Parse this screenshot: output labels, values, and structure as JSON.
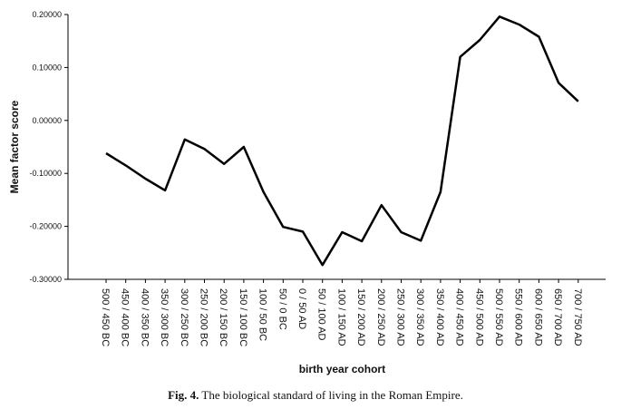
{
  "chart_data": {
    "type": "line",
    "ylabel": "Mean factor score",
    "xlabel": "birth year cohort",
    "ylim": [
      -0.3,
      0.2
    ],
    "yticks": [
      "-0.30000",
      "-0.20000",
      "-0.10000",
      "0.00000",
      "0.10000",
      "0.20000"
    ],
    "ytick_values": [
      -0.3,
      -0.2,
      -0.1,
      0.0,
      0.1,
      0.2
    ],
    "grid": false,
    "categories": [
      "500 / 450 BC",
      "450 / 400 BC",
      "400 / 350 BC",
      "350 / 300 BC",
      "300 / 250 BC",
      "250 / 200 BC",
      "200 / 150 BC",
      "150 / 100 BC",
      "100 / 50 BC",
      "50 / 0 BC",
      "0 / 50 AD",
      "50 / 100 AD",
      "100 / 150 AD",
      "150 / 200 AD",
      "200 / 250 AD",
      "250 / 300 AD",
      "300 / 350 AD",
      "350 / 400 AD",
      "400 / 450 AD",
      "450 / 500 AD",
      "500 / 550 AD",
      "550 / 600 AD",
      "600 / 650 AD",
      "650 / 700 AD",
      "700 / 750 AD"
    ],
    "series": [
      {
        "values": [
          -0.062,
          -0.085,
          -0.11,
          -0.132,
          -0.036,
          -0.054,
          -0.082,
          -0.05,
          -0.135,
          -0.201,
          -0.21,
          -0.273,
          -0.211,
          -0.228,
          -0.16,
          -0.211,
          -0.227,
          -0.135,
          0.12,
          0.152,
          0.196,
          0.181,
          0.158,
          0.071,
          0.036
        ]
      }
    ]
  },
  "caption": {
    "fig_label": "Fig. 4.",
    "text": "The biological standard of living in the Roman Empire."
  }
}
